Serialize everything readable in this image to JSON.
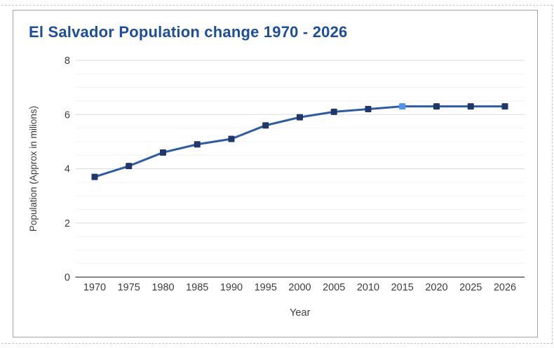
{
  "card": {
    "title": "El Salvador Population change 1970 - 2026"
  },
  "chart_data": {
    "type": "line",
    "title": "El Salvador Population change 1970 - 2026",
    "categories": [
      "1970",
      "1975",
      "1980",
      "1985",
      "1990",
      "1995",
      "2000",
      "2005",
      "2010",
      "2015",
      "2020",
      "2025",
      "2026"
    ],
    "values": [
      3.7,
      4.1,
      4.6,
      4.9,
      5.1,
      5.6,
      5.9,
      6.1,
      6.2,
      6.3,
      6.3,
      6.3,
      6.3
    ],
    "highlighted_category": "2015",
    "xlabel": "Year",
    "ylabel": "Population (Approx in milions)",
    "ylim": [
      0,
      8
    ],
    "yticks": [
      "8",
      "6",
      "4",
      "2",
      "0"
    ],
    "ytick_values": [
      8,
      6,
      4,
      2,
      0
    ],
    "minor_grid_step": 0.5,
    "grid": "on",
    "legend_position": "none",
    "colors": {
      "line": "#2d5ba9",
      "marker": "#20376b",
      "highlight_marker": "#4f93ef",
      "title": "#1d4e9b",
      "grid_major": "#dcdcdc",
      "grid_minor": "#f2f2f2",
      "axis_baseline": "#5f5f5f",
      "tick_text": "#3d3d3d",
      "card_border": "#a3a3a3",
      "selection_dash": "#c4c4c4"
    }
  }
}
